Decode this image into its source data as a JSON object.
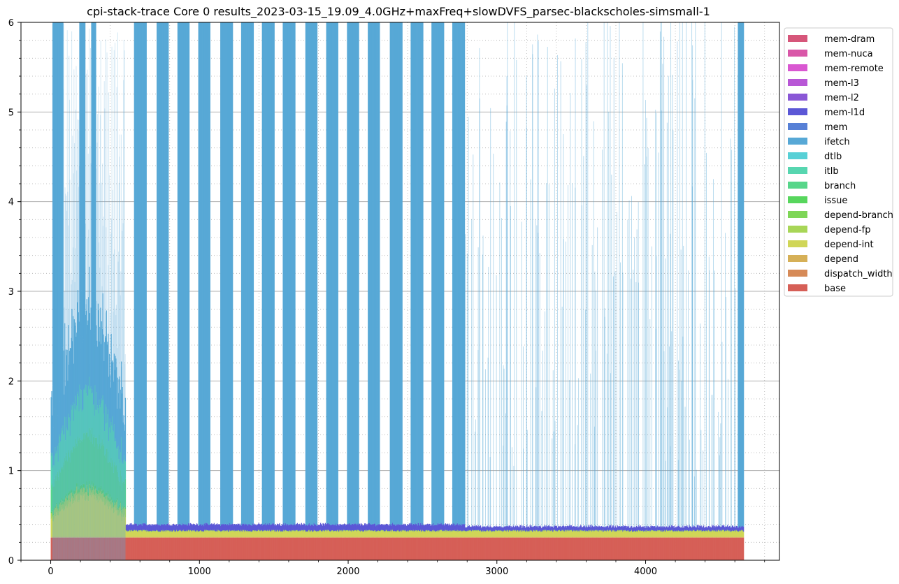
{
  "chart_data": {
    "type": "area",
    "title": "cpi-stack-trace Core 0 results_2023-03-15_19.09_4.0GHz+maxFreq+slowDVFS_parsec-blackscholes-simsmall-1",
    "xlabel": "",
    "ylabel": "",
    "xlim": [
      -200,
      4900
    ],
    "ylim": [
      0,
      6
    ],
    "x_ticks": [
      0,
      1000,
      2000,
      3000,
      4000
    ],
    "x_tick_labels": [
      "0",
      "1000",
      "2000",
      "3000",
      "4000"
    ],
    "y_ticks": [
      0,
      1,
      2,
      3,
      4,
      5,
      6
    ],
    "y_tick_labels": [
      "0",
      "1",
      "2",
      "3",
      "4",
      "5",
      "6"
    ],
    "grid": {
      "major": true,
      "minor": true,
      "minor_style": "dotted"
    },
    "legend_position": "outside-right",
    "stack_order": "base at bottom, mem-dram at top",
    "series": [
      {
        "name": "mem-dram",
        "color": "#d6567a"
      },
      {
        "name": "mem-nuca",
        "color": "#d957a8"
      },
      {
        "name": "mem-remote",
        "color": "#d957d1"
      },
      {
        "name": "mem-l3",
        "color": "#b857d6"
      },
      {
        "name": "mem-l2",
        "color": "#8a57d6"
      },
      {
        "name": "mem-l1d",
        "color": "#5b57d6"
      },
      {
        "name": "mem",
        "color": "#5780d6"
      },
      {
        "name": "ifetch",
        "color": "#57a8d6"
      },
      {
        "name": "dtlb",
        "color": "#57d0d6"
      },
      {
        "name": "itlb",
        "color": "#57d6b0"
      },
      {
        "name": "branch",
        "color": "#57d68a"
      },
      {
        "name": "issue",
        "color": "#57d65d"
      },
      {
        "name": "depend-branch",
        "color": "#7ed657"
      },
      {
        "name": "depend-fp",
        "color": "#a8d657"
      },
      {
        "name": "depend-int",
        "color": "#d0d657"
      },
      {
        "name": "depend",
        "color": "#d6b057"
      },
      {
        "name": "dispatch_width",
        "color": "#d68a57"
      },
      {
        "name": "base",
        "color": "#d65f57"
      }
    ],
    "approx_values": {
      "active_x_range": [
        0,
        4660
      ],
      "base": 0.25,
      "dispatch_width": 0.005,
      "depend": 0.005,
      "depend-int": 0.05,
      "depend-fp": 0.0,
      "issue": 0.0,
      "branch": 0.0,
      "mem-l1d": 0.06,
      "ifetch_stall_bands_x": [
        [
          10,
          80
        ],
        [
          190,
          230
        ],
        [
          270,
          300
        ],
        [
          560,
          640
        ],
        [
          710,
          790
        ],
        [
          850,
          930
        ],
        [
          990,
          1070
        ],
        [
          1140,
          1220
        ],
        [
          1280,
          1360
        ],
        [
          1420,
          1500
        ],
        [
          1560,
          1640
        ],
        [
          1710,
          1790
        ],
        [
          1850,
          1930
        ],
        [
          1990,
          2070
        ],
        [
          2130,
          2210
        ],
        [
          2280,
          2360
        ],
        [
          2420,
          2500
        ],
        [
          2560,
          2640
        ],
        [
          2700,
          2780
        ],
        [
          4620,
          4660
        ]
      ],
      "ifetch_stall_peak": 6,
      "early_phase_x": [
        0,
        500
      ],
      "early_phase_depend_int": 0.5,
      "early_phase_branch": 0.6
    }
  }
}
